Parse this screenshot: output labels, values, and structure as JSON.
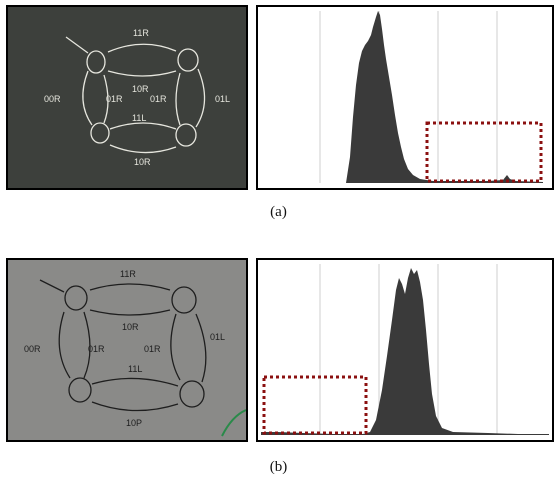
{
  "figures": [
    {
      "caption": "(a)",
      "board": {
        "background": "#3d403c",
        "ink": "#e6e6de",
        "labels": [
          "11R",
          "10R",
          "00R",
          "01R",
          "01R",
          "01L",
          "11L",
          "10R"
        ]
      },
      "histogram": {
        "fill": "#3a3a3a",
        "box_color": "#8b1010"
      }
    },
    {
      "caption": "(b)",
      "board": {
        "background": "#8a8a88",
        "ink": "#1e1e1e",
        "labels": [
          "11R",
          "10R",
          "00R",
          "01R",
          "01R",
          "01L",
          "11L",
          "10P"
        ]
      },
      "histogram": {
        "fill": "#3a3a3a",
        "box_color": "#8b1010"
      }
    }
  ]
}
